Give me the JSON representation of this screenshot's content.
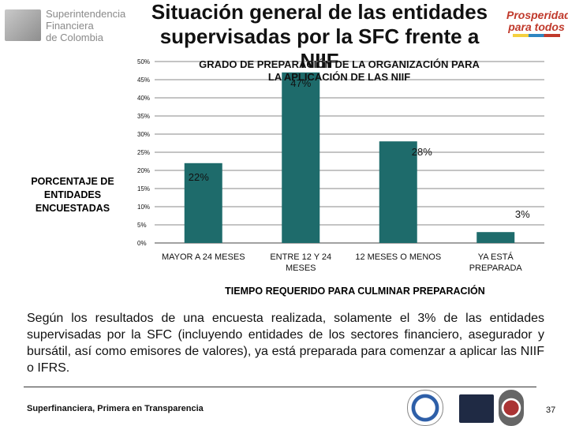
{
  "header": {
    "logo_lines": [
      "Superintendencia",
      "Financiera",
      "de Colombia"
    ],
    "title_lines": [
      "Situación general de las entidades",
      "supervisadas por la SFC frente a",
      "NIIF"
    ],
    "brand_lines": [
      "Prosperidad",
      "para todos"
    ]
  },
  "chart_data": {
    "type": "bar",
    "title_lines": [
      "GRADO DE PREPARACIÓN DE LA ORGANIZACIÓN PARA",
      "LA APLICACIÓN DE LAS NIIF"
    ],
    "categories": [
      [
        "MAYOR A 24 MESES"
      ],
      [
        "ENTRE 12 Y 24",
        "MESES"
      ],
      [
        "12 MESES O MENOS"
      ],
      [
        "YA ESTÁ",
        "PREPARADA"
      ]
    ],
    "values": [
      22,
      47,
      28,
      3
    ],
    "data_labels": [
      "22%",
      "47%",
      "28%",
      "3%"
    ],
    "y_ticks": [
      "0%",
      "5%",
      "10%",
      "15%",
      "20%",
      "25%",
      "30%",
      "35%",
      "40%",
      "45%",
      "50%"
    ],
    "ylim": [
      0,
      50
    ],
    "ylabel_lines": [
      "PORCENTAJE DE",
      "ENTIDADES",
      "ENCUESTADAS"
    ],
    "xlabel": "TIEMPO REQUERIDO PARA CULMINAR PREPARACIÓN",
    "bar_color": "#1e6b6b"
  },
  "body": {
    "paragraph": "Según los resultados de una encuesta realizada, solamente el 3% de las entidades supervisadas por la SFC (incluyendo entidades de los sectores financiero, asegurador y bursátil, así como emisores de valores), ya está preparada para comenzar a aplicar las NIIF o IFRS."
  },
  "footer": {
    "slogan": "Superfinanciera, Primera en Transparencia",
    "page_number": "37"
  }
}
